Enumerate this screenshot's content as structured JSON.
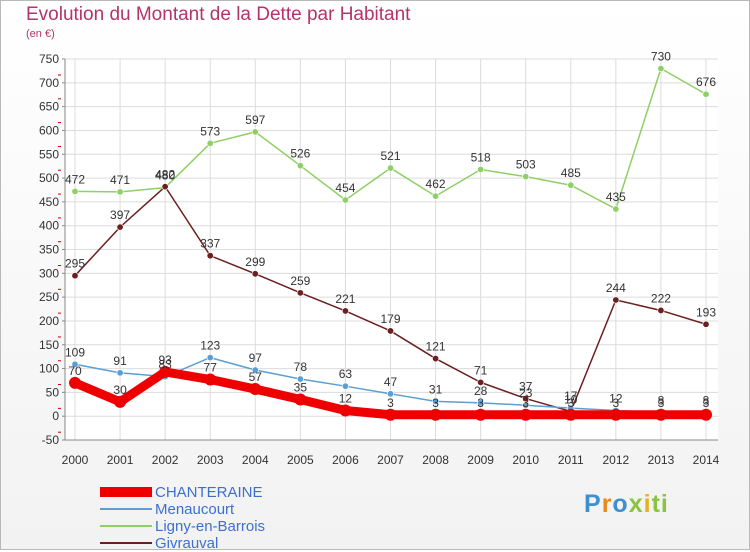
{
  "header": {
    "title": "Evolution du Montant de la Dette par Habitant",
    "unit": "(en €)"
  },
  "logo": [
    "P",
    "r",
    "o",
    "x",
    "i",
    "t",
    "i"
  ],
  "chart_data": {
    "type": "line",
    "title": "Evolution du Montant de la Dette par Habitant",
    "ylabel": "(en €)",
    "x": [
      2000,
      2001,
      2002,
      2003,
      2004,
      2005,
      2006,
      2007,
      2008,
      2009,
      2010,
      2011,
      2012,
      2013,
      2014
    ],
    "ylim": [
      -50,
      750
    ],
    "yticks": [
      -50,
      0,
      50,
      100,
      150,
      200,
      250,
      300,
      350,
      400,
      450,
      500,
      550,
      600,
      650,
      700,
      750
    ],
    "grid": true,
    "legend": "bottom-left",
    "series": [
      {
        "name": "CHANTERAINE",
        "color": "#ee0000",
        "values": [
          70,
          30,
          93,
          77,
          57,
          35,
          12,
          3,
          3,
          3,
          3,
          3,
          3,
          3,
          3
        ]
      },
      {
        "name": "Menaucourt",
        "color": "#5a9fd4",
        "values": [
          109,
          91,
          83,
          123,
          97,
          78,
          63,
          47,
          31,
          28,
          23,
          17,
          12,
          8,
          8
        ]
      },
      {
        "name": "Ligny-en-Barrois",
        "color": "#8ed065",
        "values": [
          472,
          471,
          480,
          573,
          597,
          526,
          454,
          521,
          462,
          518,
          503,
          485,
          435,
          730,
          676
        ]
      },
      {
        "name": "Givrauval",
        "color": "#6b1f1f",
        "values": [
          295,
          397,
          482,
          337,
          299,
          259,
          221,
          179,
          121,
          71,
          37,
          10,
          244,
          222,
          193
        ]
      }
    ]
  }
}
